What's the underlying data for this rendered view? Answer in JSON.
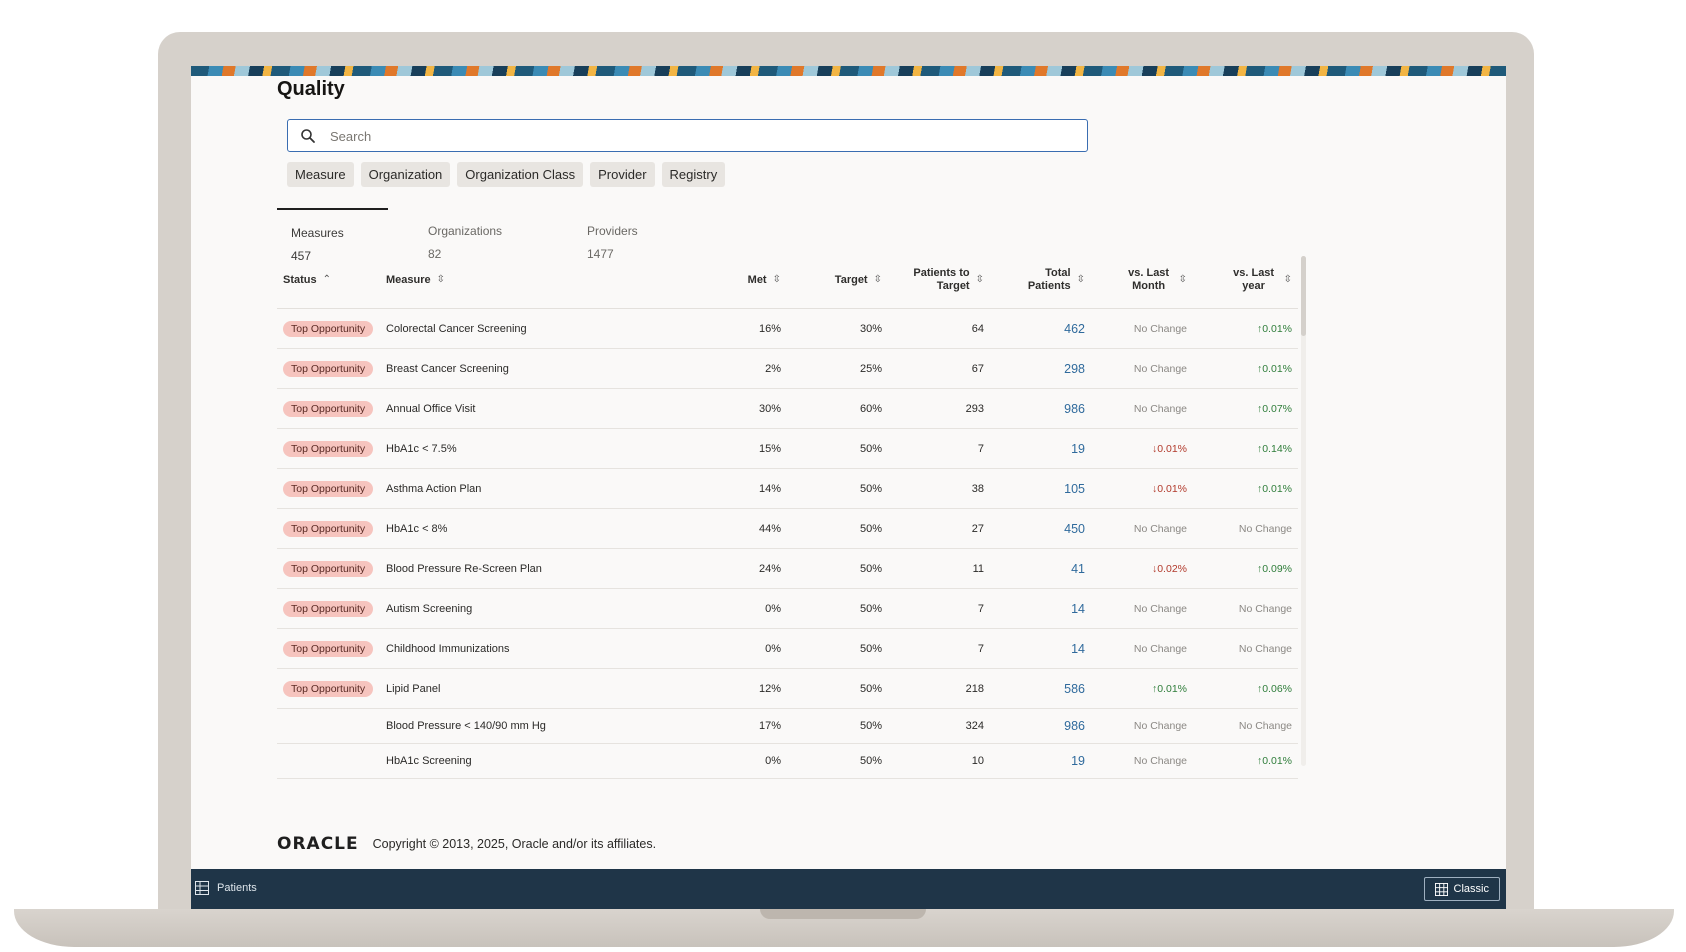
{
  "app": {
    "title": "Quality"
  },
  "search": {
    "placeholder": "Search"
  },
  "filters": [
    "Measure",
    "Organization",
    "Organization Class",
    "Provider",
    "Registry"
  ],
  "tabs": [
    {
      "label": "Measures",
      "count": "457"
    },
    {
      "label": "Organizations",
      "count": "82"
    },
    {
      "label": "Providers",
      "count": "1477"
    }
  ],
  "table": {
    "headers": {
      "status": "Status",
      "measure": "Measure",
      "met": "Met",
      "target": "Target",
      "patients_to_target": "Patients to Target",
      "total_patients": "Total Patients",
      "vs_last_month": "vs. Last Month",
      "vs_last_year": "vs. Last year"
    },
    "rows": [
      {
        "status": "Top Opportunity",
        "measure": "Colorectal Cancer Screening",
        "met": "16%",
        "target": "30%",
        "to_target": "64",
        "total": "462",
        "month": "No Change",
        "month_dir": "none",
        "year": "0.01%",
        "year_dir": "up"
      },
      {
        "status": "Top Opportunity",
        "measure": "Breast Cancer Screening",
        "met": "2%",
        "target": "25%",
        "to_target": "67",
        "total": "298",
        "month": "No Change",
        "month_dir": "none",
        "year": "0.01%",
        "year_dir": "up"
      },
      {
        "status": "Top Opportunity",
        "measure": "Annual Office Visit",
        "met": "30%",
        "target": "60%",
        "to_target": "293",
        "total": "986",
        "month": "No Change",
        "month_dir": "none",
        "year": "0.07%",
        "year_dir": "up"
      },
      {
        "status": "Top Opportunity",
        "measure": "HbA1c < 7.5%",
        "met": "15%",
        "target": "50%",
        "to_target": "7",
        "total": "19",
        "month": "0.01%",
        "month_dir": "down",
        "year": "0.14%",
        "year_dir": "up"
      },
      {
        "status": "Top Opportunity",
        "measure": "Asthma Action Plan",
        "met": "14%",
        "target": "50%",
        "to_target": "38",
        "total": "105",
        "month": "0.01%",
        "month_dir": "down",
        "year": "0.01%",
        "year_dir": "up"
      },
      {
        "status": "Top Opportunity",
        "measure": "HbA1c < 8%",
        "met": "44%",
        "target": "50%",
        "to_target": "27",
        "total": "450",
        "month": "No Change",
        "month_dir": "none",
        "year": "No Change",
        "year_dir": "none"
      },
      {
        "status": "Top Opportunity",
        "measure": "Blood Pressure Re-Screen Plan",
        "met": "24%",
        "target": "50%",
        "to_target": "11",
        "total": "41",
        "month": "0.02%",
        "month_dir": "down",
        "year": "0.09%",
        "year_dir": "up"
      },
      {
        "status": "Top Opportunity",
        "measure": "Autism Screening",
        "met": "0%",
        "target": "50%",
        "to_target": "7",
        "total": "14",
        "month": "No Change",
        "month_dir": "none",
        "year": "No Change",
        "year_dir": "none"
      },
      {
        "status": "Top Opportunity",
        "measure": "Childhood Immunizations",
        "met": "0%",
        "target": "50%",
        "to_target": "7",
        "total": "14",
        "month": "No Change",
        "month_dir": "none",
        "year": "No Change",
        "year_dir": "none"
      },
      {
        "status": "Top Opportunity",
        "measure": "Lipid Panel",
        "met": "12%",
        "target": "50%",
        "to_target": "218",
        "total": "586",
        "month": "0.01%",
        "month_dir": "up",
        "year": "0.06%",
        "year_dir": "up"
      },
      {
        "status": "",
        "measure": "Blood Pressure < 140/90 mm Hg",
        "met": "17%",
        "target": "50%",
        "to_target": "324",
        "total": "986",
        "month": "No Change",
        "month_dir": "none",
        "year": "No Change",
        "year_dir": "none"
      },
      {
        "status": "",
        "measure": "HbA1c Screening",
        "met": "0%",
        "target": "50%",
        "to_target": "10",
        "total": "19",
        "month": "No Change",
        "month_dir": "none",
        "year": "0.01%",
        "year_dir": "up"
      }
    ]
  },
  "footer": {
    "logo": "ORACLE",
    "copyright": "Copyright © 2013, 2025, Oracle and/or its affiliates."
  },
  "bottom_bar": {
    "left_label": "Patients",
    "button_label": "Classic"
  },
  "colors": {
    "accent": "#3a6db1",
    "badge": "#f6c4be",
    "link": "#2f6a9c",
    "up": "#2f7d3a",
    "down": "#b23a2c",
    "bottom_bar": "#1f3548"
  },
  "icons": {
    "search": "search-icon",
    "sort": "sort-icon",
    "grid": "grid-icon"
  }
}
